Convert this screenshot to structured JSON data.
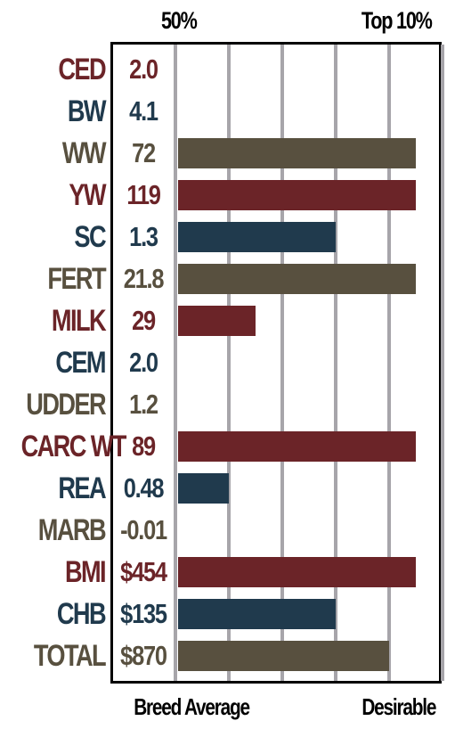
{
  "header": {
    "left_label": "50%",
    "right_label": "Top 10%"
  },
  "footer": {
    "left_label": "Breed Average",
    "right_label": "Desirable"
  },
  "colors": {
    "red": "#6b2428",
    "blue": "#203a4d",
    "brown": "#58503f",
    "grid": "#a7a5aa"
  },
  "chart_data": {
    "type": "bar",
    "orientation": "horizontal",
    "x_axis": {
      "min_label": "Breed Average",
      "max_label": "Desirable",
      "range": [
        0,
        5
      ]
    },
    "rows": [
      {
        "trait": "CED",
        "value": "2.0",
        "bar": 0,
        "color": "red"
      },
      {
        "trait": "BW",
        "value": "4.1",
        "bar": 0,
        "color": "blue"
      },
      {
        "trait": "WW",
        "value": "72",
        "bar": 4.5,
        "color": "brown"
      },
      {
        "trait": "YW",
        "value": "119",
        "bar": 4.5,
        "color": "red"
      },
      {
        "trait": "SC",
        "value": "1.3",
        "bar": 3.0,
        "color": "blue"
      },
      {
        "trait": "FERT",
        "value": "21.8",
        "bar": 4.5,
        "color": "brown"
      },
      {
        "trait": "MILK",
        "value": "29",
        "bar": 1.5,
        "color": "red"
      },
      {
        "trait": "CEM",
        "value": "2.0",
        "bar": 0,
        "color": "blue"
      },
      {
        "trait": "UDDER",
        "value": "1.2",
        "bar": 0,
        "color": "brown"
      },
      {
        "trait": "CARC WT",
        "value": "89",
        "bar": 4.5,
        "color": "red"
      },
      {
        "trait": "REA",
        "value": "0.48",
        "bar": 1.0,
        "color": "blue"
      },
      {
        "trait": "MARB",
        "value": "-0.01",
        "bar": 0,
        "color": "brown"
      },
      {
        "trait": "BMI",
        "value": "$454",
        "bar": 4.5,
        "color": "red"
      },
      {
        "trait": "CHB",
        "value": "$135",
        "bar": 3.0,
        "color": "blue"
      },
      {
        "trait": "TOTAL",
        "value": "$870",
        "bar": 4.0,
        "color": "brown"
      }
    ]
  }
}
